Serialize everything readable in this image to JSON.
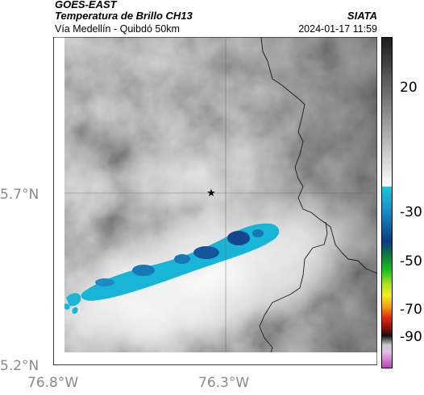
{
  "header": {
    "source": "GOES-EAST",
    "product": "Temperatura de Brillo CH13",
    "region": "Vía Medellín - Quibdó 50km",
    "organization": "SIATA",
    "timestamp": "2024-01-17 11:59"
  },
  "map": {
    "lat_ticks": [
      {
        "value": 5.7,
        "label": "5.7°N"
      },
      {
        "value": 5.2,
        "label": "5.2°N"
      }
    ],
    "lon_ticks": [
      {
        "value": -76.8,
        "label": "76.8°W"
      },
      {
        "value": -76.3,
        "label": "76.3°W"
      }
    ],
    "marker_icon": "star-icon"
  },
  "colorbar": {
    "ticks": [
      "20",
      "-30",
      "-50",
      "-70",
      "-90"
    ],
    "colors": {
      "warm_gray_top": "#1a1a1a",
      "warm_gray_bottom": "#ffffff",
      "cold_cyan": "#18b6d8",
      "cold_blue": "#0c3f86",
      "green": "#15c21d",
      "yellow": "#f3ee1b",
      "red": "#e02a10",
      "magenta": "#b33bb6"
    }
  }
}
